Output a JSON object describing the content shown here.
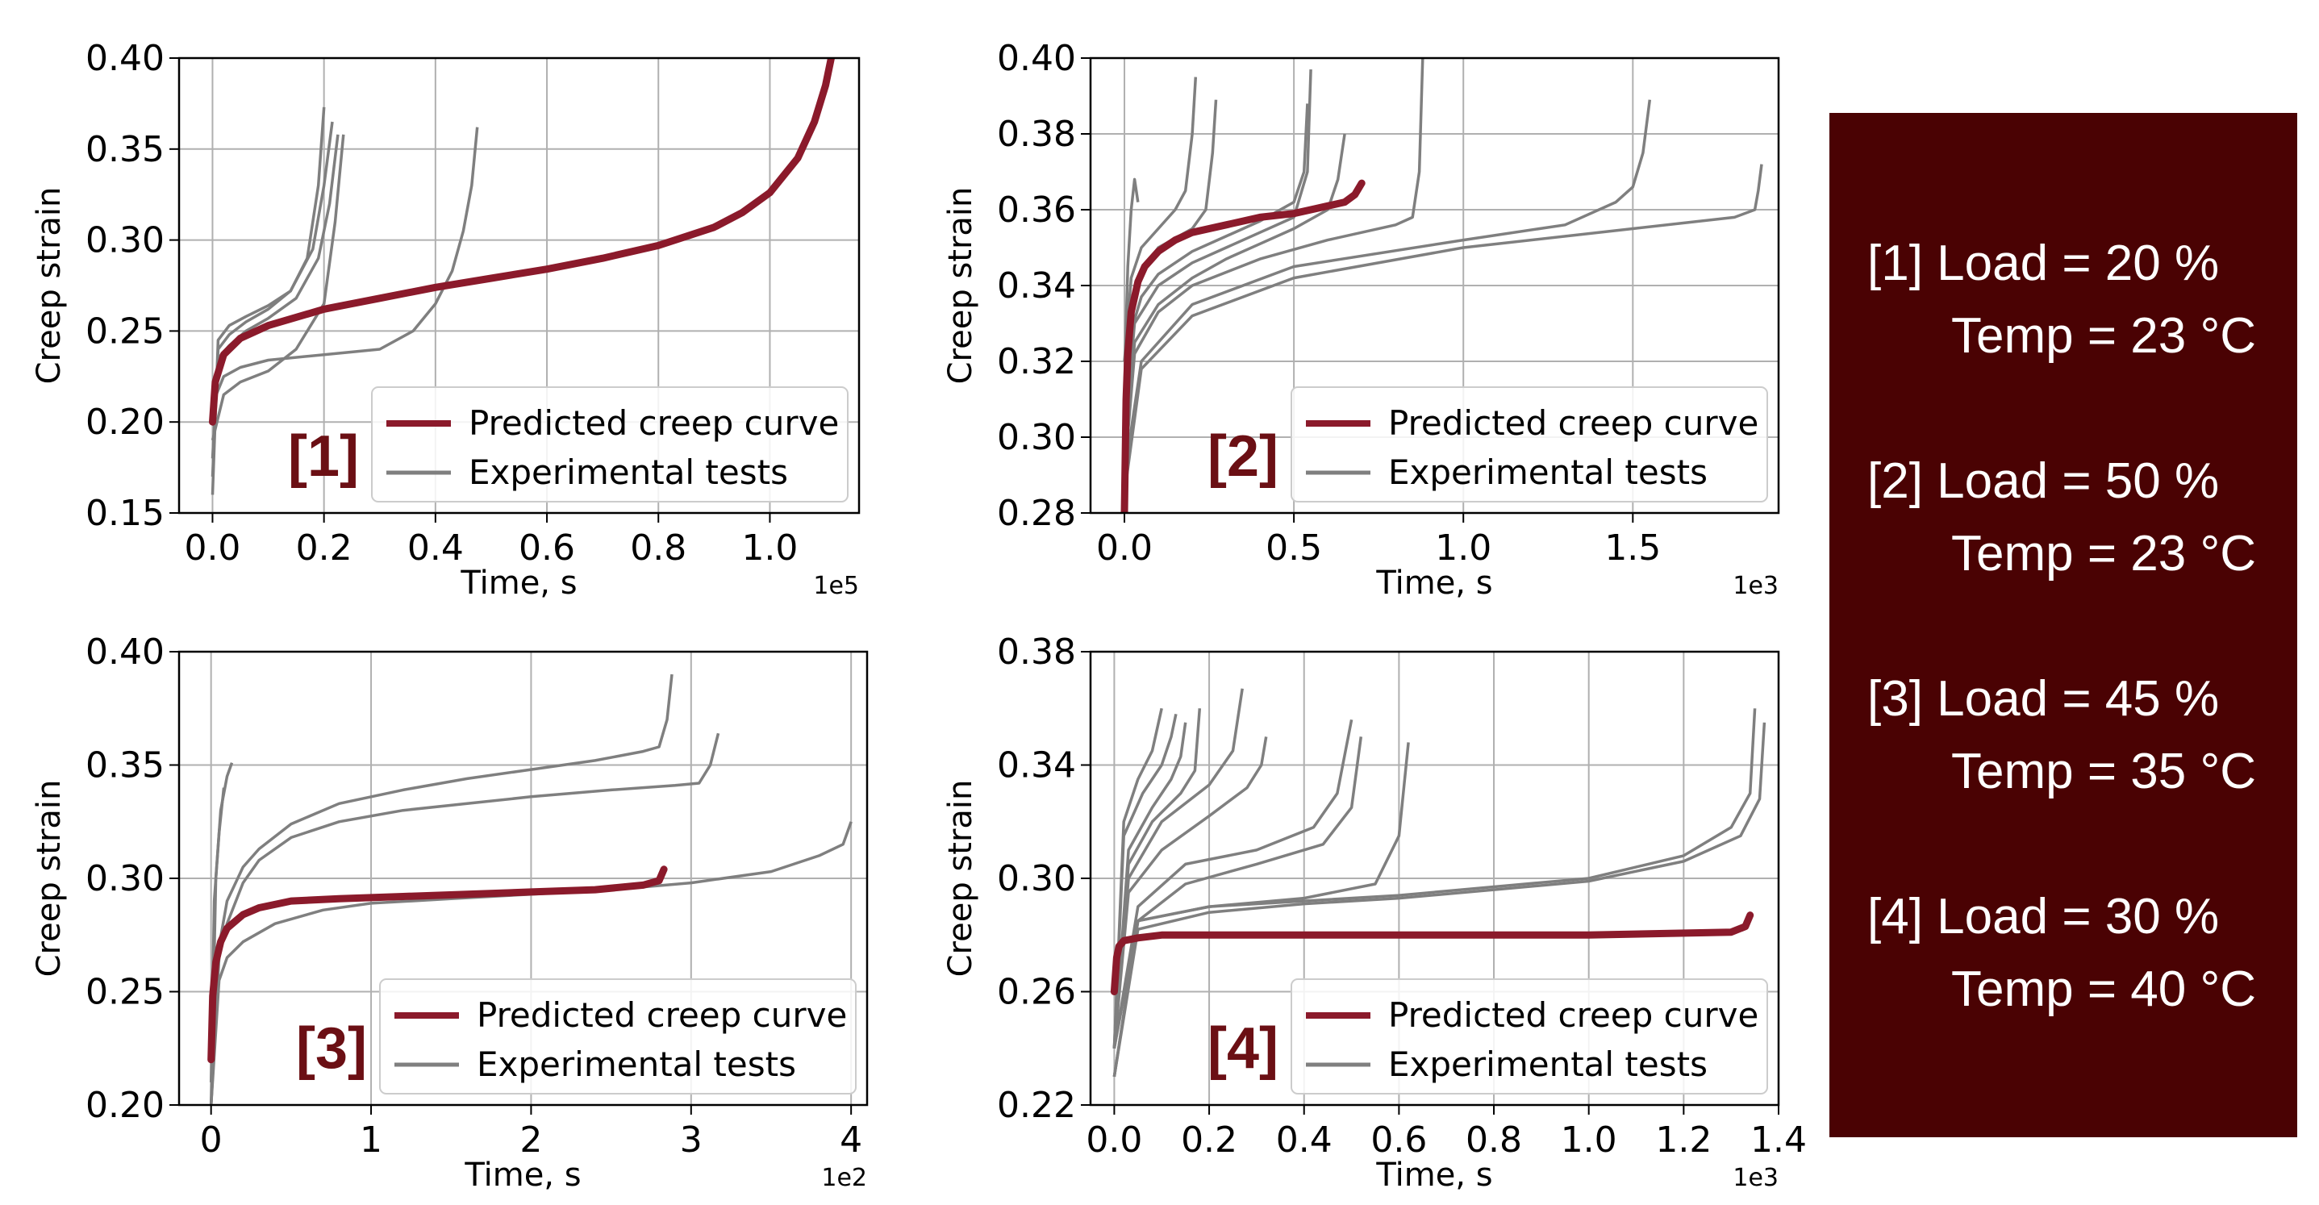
{
  "colors": {
    "predicted": "#8b1a2b",
    "experimental": "#7f7f7f",
    "panel_bg": "#4a0203",
    "label": "#6b0f14"
  },
  "conditions": [
    {
      "id": "[1]",
      "load": "Load = 20 %",
      "temp": "Temp = 23 °C"
    },
    {
      "id": "[2]",
      "load": "Load = 50 %",
      "temp": "Temp = 23 °C"
    },
    {
      "id": "[3]",
      "load": "Load = 45 %",
      "temp": "Temp = 35 °C"
    },
    {
      "id": "[4]",
      "load": "Load = 30 %",
      "temp": "Temp = 40 °C"
    }
  ],
  "chart_data": [
    {
      "type": "line",
      "panel_label": "[1]",
      "xlabel": "Time, s",
      "ylabel": "Creep strain",
      "x_scale_label": "1e5",
      "xlim": [
        -0.06,
        1.16
      ],
      "ylim": [
        0.15,
        0.4
      ],
      "xticks": [
        "0.0",
        "0.2",
        "0.4",
        "0.6",
        "0.8",
        "1.0"
      ],
      "xtick_values": [
        0,
        0.2,
        0.4,
        0.6,
        0.8,
        1.0
      ],
      "yticks": [
        "0.15",
        "0.20",
        "0.25",
        "0.30",
        "0.35",
        "0.40"
      ],
      "ytick_values": [
        0.15,
        0.2,
        0.25,
        0.3,
        0.35,
        0.4
      ],
      "grid": true,
      "legend": "lower-right",
      "legend_entries": [
        "Predicted creep curve",
        "Experimental tests"
      ],
      "predicted": {
        "x": [
          0,
          0.005,
          0.02,
          0.05,
          0.1,
          0.2,
          0.3,
          0.4,
          0.5,
          0.6,
          0.7,
          0.8,
          0.9,
          0.95,
          1.0,
          1.05,
          1.08,
          1.1,
          1.11
        ],
        "y": [
          0.2,
          0.222,
          0.237,
          0.246,
          0.253,
          0.262,
          0.268,
          0.274,
          0.279,
          0.284,
          0.29,
          0.297,
          0.307,
          0.315,
          0.326,
          0.345,
          0.365,
          0.385,
          0.4
        ]
      },
      "experimental": [
        {
          "x": [
            0,
            0.01,
            0.03,
            0.06,
            0.1,
            0.14,
            0.17,
            0.19,
            0.2
          ],
          "y": [
            0.16,
            0.245,
            0.253,
            0.258,
            0.264,
            0.272,
            0.29,
            0.33,
            0.373
          ]
        },
        {
          "x": [
            0,
            0.01,
            0.03,
            0.06,
            0.1,
            0.14,
            0.18,
            0.2,
            0.215
          ],
          "y": [
            0.17,
            0.24,
            0.248,
            0.255,
            0.262,
            0.272,
            0.295,
            0.33,
            0.365
          ]
        },
        {
          "x": [
            0,
            0.01,
            0.03,
            0.06,
            0.1,
            0.15,
            0.19,
            0.21,
            0.225
          ],
          "y": [
            0.18,
            0.235,
            0.242,
            0.25,
            0.257,
            0.268,
            0.29,
            0.32,
            0.358
          ]
        },
        {
          "x": [
            0,
            0.02,
            0.05,
            0.1,
            0.15,
            0.2,
            0.22,
            0.235
          ],
          "y": [
            0.19,
            0.215,
            0.222,
            0.228,
            0.24,
            0.265,
            0.31,
            0.358
          ]
        },
        {
          "x": [
            0,
            0.02,
            0.05,
            0.1,
            0.2,
            0.3,
            0.36,
            0.4,
            0.43,
            0.45,
            0.465,
            0.475
          ],
          "y": [
            0.21,
            0.225,
            0.23,
            0.234,
            0.237,
            0.24,
            0.25,
            0.265,
            0.283,
            0.305,
            0.33,
            0.362
          ]
        }
      ]
    },
    {
      "type": "line",
      "panel_label": "[2]",
      "xlabel": "Time, s",
      "ylabel": "Creep strain",
      "x_scale_label": "1e3",
      "xlim": [
        -0.1,
        1.93
      ],
      "ylim": [
        0.28,
        0.4
      ],
      "xticks": [
        "0.0",
        "0.5",
        "1.0",
        "1.5"
      ],
      "xtick_values": [
        0,
        0.5,
        1.0,
        1.5
      ],
      "yticks": [
        "0.28",
        "0.30",
        "0.32",
        "0.34",
        "0.36",
        "0.38",
        "0.40"
      ],
      "ytick_values": [
        0.28,
        0.3,
        0.32,
        0.34,
        0.36,
        0.38,
        0.4
      ],
      "grid": true,
      "legend": "lower-right",
      "legend_entries": [
        "Predicted creep curve",
        "Experimental tests"
      ],
      "predicted": {
        "x": [
          0,
          0.005,
          0.01,
          0.02,
          0.04,
          0.06,
          0.1,
          0.15,
          0.2,
          0.3,
          0.4,
          0.5,
          0.6,
          0.65,
          0.68,
          0.7
        ],
        "y": [
          0.28,
          0.31,
          0.322,
          0.333,
          0.341,
          0.345,
          0.349,
          0.352,
          0.354,
          0.356,
          0.358,
          0.359,
          0.361,
          0.362,
          0.364,
          0.367
        ]
      },
      "experimental": [
        {
          "x": [
            0,
            0.005,
            0.01,
            0.02,
            0.03,
            0.04
          ],
          "y": [
            0.31,
            0.33,
            0.345,
            0.36,
            0.368,
            0.362
          ]
        },
        {
          "x": [
            0,
            0.02,
            0.05,
            0.1,
            0.15,
            0.18,
            0.2,
            0.21
          ],
          "y": [
            0.32,
            0.342,
            0.35,
            0.355,
            0.36,
            0.365,
            0.38,
            0.395
          ]
        },
        {
          "x": [
            0,
            0.02,
            0.05,
            0.1,
            0.2,
            0.24,
            0.26,
            0.27
          ],
          "y": [
            0.3,
            0.335,
            0.343,
            0.35,
            0.355,
            0.36,
            0.375,
            0.389
          ]
        },
        {
          "x": [
            0,
            0.02,
            0.05,
            0.1,
            0.2,
            0.3,
            0.4,
            0.5,
            0.53,
            0.54
          ],
          "y": [
            0.29,
            0.328,
            0.337,
            0.343,
            0.349,
            0.353,
            0.357,
            0.362,
            0.37,
            0.388
          ]
        },
        {
          "x": [
            0,
            0.03,
            0.1,
            0.2,
            0.3,
            0.4,
            0.5,
            0.54,
            0.55
          ],
          "y": [
            0.3,
            0.33,
            0.34,
            0.346,
            0.35,
            0.354,
            0.358,
            0.37,
            0.397
          ]
        },
        {
          "x": [
            0,
            0.03,
            0.1,
            0.2,
            0.3,
            0.4,
            0.5,
            0.6,
            0.63,
            0.65
          ],
          "y": [
            0.29,
            0.325,
            0.335,
            0.342,
            0.347,
            0.351,
            0.355,
            0.36,
            0.368,
            0.38
          ]
        },
        {
          "x": [
            0,
            0.03,
            0.1,
            0.2,
            0.4,
            0.6,
            0.8,
            0.85,
            0.87,
            0.88
          ],
          "y": [
            0.29,
            0.322,
            0.333,
            0.34,
            0.347,
            0.352,
            0.356,
            0.358,
            0.37,
            0.4
          ]
        },
        {
          "x": [
            0,
            0.05,
            0.2,
            0.5,
            1.0,
            1.3,
            1.45,
            1.5,
            1.53,
            1.55
          ],
          "y": [
            0.29,
            0.32,
            0.335,
            0.345,
            0.352,
            0.356,
            0.362,
            0.366,
            0.375,
            0.389
          ]
        },
        {
          "x": [
            0,
            0.05,
            0.2,
            0.5,
            1.0,
            1.5,
            1.8,
            1.86,
            1.87,
            1.88
          ],
          "y": [
            0.285,
            0.318,
            0.332,
            0.342,
            0.35,
            0.355,
            0.358,
            0.36,
            0.365,
            0.372
          ]
        }
      ]
    },
    {
      "type": "line",
      "panel_label": "[3]",
      "xlabel": "Time, s",
      "ylabel": "Creep strain",
      "x_scale_label": "1e2",
      "xlim": [
        -0.2,
        4.1
      ],
      "ylim": [
        0.2,
        0.4
      ],
      "xticks": [
        "0",
        "1",
        "2",
        "3",
        "4"
      ],
      "xtick_values": [
        0,
        1,
        2,
        3,
        4
      ],
      "yticks": [
        "0.20",
        "0.25",
        "0.30",
        "0.35",
        "0.40"
      ],
      "ytick_values": [
        0.2,
        0.25,
        0.3,
        0.35,
        0.4
      ],
      "grid": true,
      "legend": "lower-right",
      "legend_entries": [
        "Predicted creep curve",
        "Experimental tests"
      ],
      "predicted": {
        "x": [
          0,
          0.01,
          0.03,
          0.06,
          0.1,
          0.2,
          0.3,
          0.5,
          0.8,
          1.2,
          1.6,
          2.0,
          2.4,
          2.7,
          2.8,
          2.83
        ],
        "y": [
          0.22,
          0.248,
          0.263,
          0.272,
          0.278,
          0.284,
          0.287,
          0.29,
          0.291,
          0.292,
          0.293,
          0.294,
          0.295,
          0.297,
          0.299,
          0.304
        ]
      },
      "experimental": [
        {
          "x": [
            0,
            0.03,
            0.06,
            0.1,
            0.13
          ],
          "y": [
            0.2,
            0.3,
            0.33,
            0.345,
            0.351
          ]
        },
        {
          "x": [
            0,
            0.02,
            0.05,
            0.08
          ],
          "y": [
            0.21,
            0.29,
            0.32,
            0.34
          ]
        },
        {
          "x": [
            0,
            0.05,
            0.1,
            0.2,
            0.3,
            0.5,
            0.8,
            1.2,
            1.6,
            2.0,
            2.4,
            2.7,
            2.8,
            2.85,
            2.88
          ],
          "y": [
            0.2,
            0.27,
            0.29,
            0.305,
            0.313,
            0.324,
            0.333,
            0.339,
            0.344,
            0.348,
            0.352,
            0.356,
            0.358,
            0.37,
            0.39
          ]
        },
        {
          "x": [
            0,
            0.05,
            0.1,
            0.2,
            0.3,
            0.5,
            0.8,
            1.2,
            1.6,
            2.0,
            2.5,
            2.9,
            3.05,
            3.12,
            3.17
          ],
          "y": [
            0.2,
            0.265,
            0.28,
            0.298,
            0.308,
            0.318,
            0.325,
            0.33,
            0.333,
            0.336,
            0.339,
            0.341,
            0.342,
            0.35,
            0.364
          ]
        },
        {
          "x": [
            0,
            0.05,
            0.1,
            0.2,
            0.4,
            0.7,
            1.0,
            1.5,
            2.0,
            2.5,
            3.0,
            3.5,
            3.8,
            3.95,
            4.0
          ],
          "y": [
            0.2,
            0.255,
            0.265,
            0.272,
            0.28,
            0.286,
            0.289,
            0.291,
            0.293,
            0.295,
            0.298,
            0.303,
            0.31,
            0.315,
            0.325
          ]
        }
      ]
    },
    {
      "type": "line",
      "panel_label": "[4]",
      "xlabel": "Time, s",
      "ylabel": "Creep strain",
      "x_scale_label": "1e3",
      "xlim": [
        -0.05,
        1.4
      ],
      "ylim": [
        0.22,
        0.38
      ],
      "xticks": [
        "0.0",
        "0.2",
        "0.4",
        "0.6",
        "0.8",
        "1.0",
        "1.2",
        "1.4"
      ],
      "xtick_values": [
        0,
        0.2,
        0.4,
        0.6,
        0.8,
        1.0,
        1.2,
        1.4
      ],
      "yticks": [
        "0.22",
        "0.26",
        "0.30",
        "0.34",
        "0.38"
      ],
      "ytick_values": [
        0.22,
        0.26,
        0.3,
        0.34,
        0.38
      ],
      "grid": true,
      "legend": "lower-right",
      "legend_entries": [
        "Predicted creep curve",
        "Experimental tests"
      ],
      "predicted": {
        "x": [
          0,
          0.005,
          0.01,
          0.02,
          0.05,
          0.1,
          0.2,
          0.5,
          1.0,
          1.3,
          1.33,
          1.34
        ],
        "y": [
          0.26,
          0.272,
          0.276,
          0.278,
          0.279,
          0.28,
          0.28,
          0.28,
          0.28,
          0.281,
          0.283,
          0.287
        ]
      },
      "experimental": [
        {
          "x": [
            0,
            0.02,
            0.05,
            0.08,
            0.1
          ],
          "y": [
            0.24,
            0.32,
            0.335,
            0.345,
            0.36
          ]
        },
        {
          "x": [
            0,
            0.02,
            0.06,
            0.1,
            0.12,
            0.13
          ],
          "y": [
            0.24,
            0.315,
            0.33,
            0.34,
            0.35,
            0.358
          ]
        },
        {
          "x": [
            0,
            0.03,
            0.08,
            0.12,
            0.14,
            0.15
          ],
          "y": [
            0.24,
            0.31,
            0.325,
            0.335,
            0.343,
            0.355
          ]
        },
        {
          "x": [
            0,
            0.03,
            0.08,
            0.14,
            0.17,
            0.18
          ],
          "y": [
            0.24,
            0.305,
            0.32,
            0.33,
            0.338,
            0.36
          ]
        },
        {
          "x": [
            0,
            0.03,
            0.1,
            0.2,
            0.25,
            0.27
          ],
          "y": [
            0.24,
            0.3,
            0.32,
            0.333,
            0.345,
            0.367
          ]
        },
        {
          "x": [
            0,
            0.03,
            0.1,
            0.2,
            0.28,
            0.31,
            0.32
          ],
          "y": [
            0.24,
            0.295,
            0.31,
            0.322,
            0.332,
            0.34,
            0.35
          ]
        },
        {
          "x": [
            0,
            0.05,
            0.15,
            0.3,
            0.42,
            0.47,
            0.5
          ],
          "y": [
            0.24,
            0.29,
            0.305,
            0.31,
            0.318,
            0.33,
            0.356
          ]
        },
        {
          "x": [
            0,
            0.05,
            0.15,
            0.3,
            0.44,
            0.5,
            0.52
          ],
          "y": [
            0.24,
            0.285,
            0.298,
            0.305,
            0.312,
            0.325,
            0.35
          ]
        },
        {
          "x": [
            0,
            0.05,
            0.2,
            0.4,
            0.55,
            0.6,
            0.62
          ],
          "y": [
            0.23,
            0.285,
            0.29,
            0.293,
            0.298,
            0.315,
            0.348
          ]
        },
        {
          "x": [
            0,
            0.05,
            0.2,
            0.4,
            0.6,
            0.8,
            1.0,
            1.2,
            1.3,
            1.34,
            1.35
          ],
          "y": [
            0.23,
            0.285,
            0.29,
            0.292,
            0.294,
            0.297,
            0.3,
            0.308,
            0.318,
            0.33,
            0.36
          ]
        },
        {
          "x": [
            0,
            0.05,
            0.2,
            0.4,
            0.6,
            0.8,
            1.0,
            1.2,
            1.32,
            1.36,
            1.37
          ],
          "y": [
            0.23,
            0.282,
            0.288,
            0.291,
            0.293,
            0.296,
            0.299,
            0.306,
            0.315,
            0.328,
            0.355
          ]
        }
      ]
    }
  ]
}
